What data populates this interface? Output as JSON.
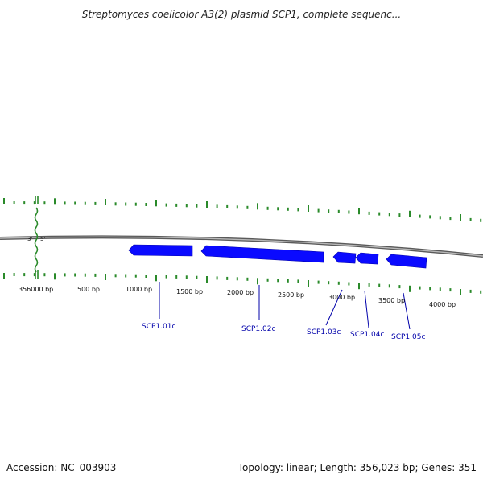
{
  "title": "Streptomyces coelicolor A3(2) plasmid SCP1, complete sequenc...",
  "footer": {
    "accession": "Accession: NC_003903",
    "summary": "Topology: linear; Length: 356,023 bp; Genes: 351"
  },
  "backbone": {
    "three_prime": "3'",
    "five_prime": "5'"
  },
  "scale_labels": [
    "356000 bp",
    "500 bp",
    "1000 bp",
    "1500 bp",
    "2000 bp",
    "2500 bp",
    "3000 bp",
    "3500 bp",
    "4000 bp"
  ],
  "genes": [
    {
      "name": "SCP1.01c"
    },
    {
      "name": "SCP1.02c"
    },
    {
      "name": "SCP1.03c"
    },
    {
      "name": "SCP1.04c"
    },
    {
      "name": "SCP1.05c"
    }
  ],
  "colors": {
    "gene_fill": "#0a0aff",
    "gene_label": "#0000aa",
    "tick": "#2a8a2a",
    "backbone": "#8a8a8a"
  }
}
